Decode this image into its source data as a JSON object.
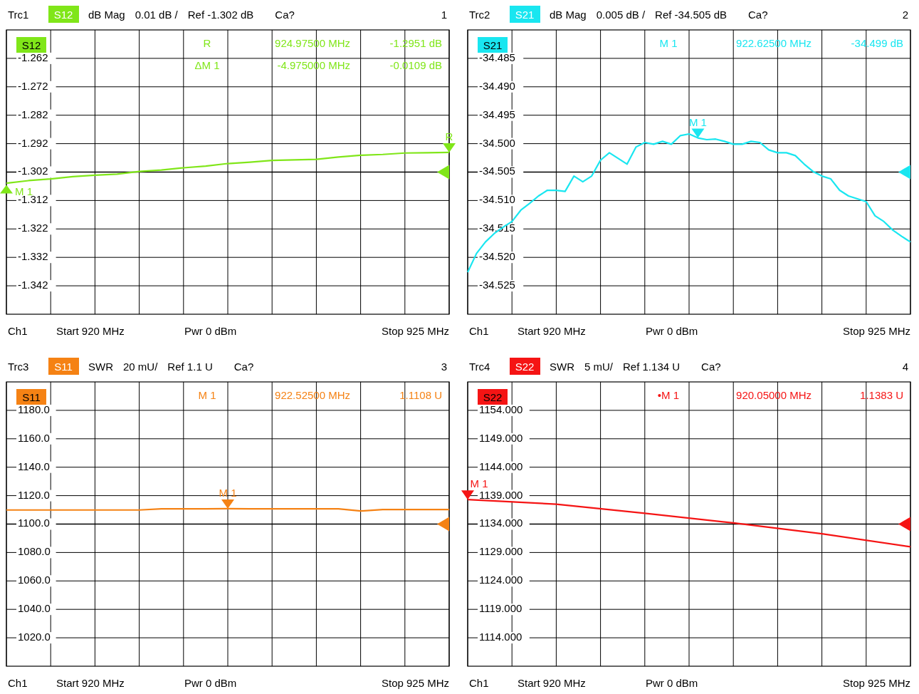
{
  "chart_data": [
    {
      "type": "line",
      "title": "Trc1",
      "categories": [
        null,
        null,
        null,
        null,
        null,
        null,
        null,
        null,
        null,
        null,
        null,
        null,
        null,
        null,
        null,
        null,
        null,
        null,
        null,
        null,
        null
      ],
      "ylim": [
        -1.352,
        -1.252
      ],
      "yticks": [
        {
          "value": -1.262,
          "label": "-1.262"
        },
        {
          "value": -1.272,
          "label": "-1.272"
        },
        {
          "value": -1.282,
          "label": "-1.282"
        },
        {
          "value": -1.292,
          "label": "-1.292"
        },
        {
          "value": -1.302,
          "label": "-1.302"
        },
        {
          "value": -1.312,
          "label": "-1.312"
        },
        {
          "value": -1.322,
          "label": "-1.322"
        },
        {
          "value": -1.332,
          "label": "-1.332"
        },
        {
          "value": -1.342,
          "label": "-1.342"
        }
      ],
      "grid": true,
      "tick_labels": "y",
      "legend": "top left",
      "series": [
        {
          "name": "S12",
          "color": "#80e619",
          "values": [
            -1.3059,
            -1.305,
            -1.3044,
            -1.3036,
            -1.3031,
            -1.3027,
            -1.3018,
            -1.3013,
            -1.3005,
            -1.2999,
            -1.299,
            -1.2985,
            -1.2979,
            -1.2977,
            -1.2975,
            -1.2967,
            -1.2961,
            -1.2958,
            -1.2953,
            -1.2952,
            -1.2951
          ]
        }
      ],
      "ref_lines": [
        {
          "axis": "y",
          "value": -1.302
        }
      ],
      "annotations": [
        "dB Mag",
        "0.01 dB /",
        "Ref -1.302 dB",
        "Ca?",
        "1",
        "Ch1",
        "Start 920 MHz",
        "Pwr 0 dBm",
        "Stop 925 MHz",
        "R",
        "924.97500 MHz",
        "-1.2951 dB",
        "ΔM 1",
        "-4.975000 MHz",
        "-0.0109 dB",
        {
          "text": "R",
          "y": -1.2951
        },
        {
          "text": "M 1",
          "y": -1.306
        }
      ]
    },
    {
      "type": "line",
      "title": "Trc2",
      "categories": [
        null,
        null,
        null,
        null,
        null,
        null,
        null,
        null,
        null,
        null,
        null,
        null,
        null,
        null,
        null,
        null,
        null,
        null,
        null,
        null,
        null,
        null,
        null,
        null,
        null,
        null,
        null,
        null,
        null,
        null,
        null,
        null,
        null,
        null,
        null,
        null,
        null,
        null,
        null,
        null,
        null,
        null,
        null,
        null,
        null,
        null,
        null,
        null,
        null,
        null,
        null
      ],
      "ylim": [
        -34.53,
        -34.48
      ],
      "yticks": [
        {
          "value": -34.485,
          "label": "-34.485"
        },
        {
          "value": -34.49,
          "label": "-34.490"
        },
        {
          "value": -34.495,
          "label": "-34.495"
        },
        {
          "value": -34.5,
          "label": "-34.500"
        },
        {
          "value": -34.505,
          "label": "-34.505"
        },
        {
          "value": -34.51,
          "label": "-34.510"
        },
        {
          "value": -34.515,
          "label": "-34.515"
        },
        {
          "value": -34.52,
          "label": "-34.520"
        },
        {
          "value": -34.525,
          "label": "-34.525"
        }
      ],
      "grid": true,
      "tick_labels": "y",
      "legend": "top left",
      "series": [
        {
          "name": "S21",
          "color": "#19e6f0",
          "values": [
            -34.5226,
            -34.5193,
            -34.5173,
            -34.5158,
            -34.5147,
            -34.5137,
            -34.5117,
            -34.5105,
            -34.5092,
            -34.5082,
            -34.5082,
            -34.5084,
            -34.5057,
            -34.5067,
            -34.5057,
            -34.5029,
            -34.5016,
            -34.5026,
            -34.5036,
            -34.5006,
            -34.4998,
            -34.5001,
            -34.4996,
            -34.5001,
            -34.4986,
            -34.4983,
            -34.499,
            -34.4993,
            -34.4992,
            -34.4996,
            -34.5001,
            -34.5001,
            -34.4996,
            -34.4998,
            -34.5011,
            -34.5016,
            -34.5016,
            -34.5021,
            -34.5036,
            -34.5049,
            -34.5057,
            -34.5062,
            -34.5082,
            -34.5092,
            -34.5097,
            -34.5102,
            -34.5127,
            -34.5137,
            -34.5152,
            -34.5163,
            -34.5173
          ]
        }
      ],
      "ref_lines": [
        {
          "axis": "y",
          "value": -34.505
        }
      ],
      "annotations": [
        "dB Mag",
        "0.005 dB /",
        "Ref -34.505 dB",
        "Ca?",
        "2",
        "Ch1",
        "Start 920 MHz",
        "Pwr 0 dBm",
        "Stop 925 MHz",
        "M 1",
        "922.62500 MHz",
        "-34.499 dB",
        {
          "text": "M 1",
          "y": -34.499
        }
      ]
    },
    {
      "type": "line",
      "title": "Trc3",
      "categories": [
        null,
        null,
        null,
        null,
        null,
        null,
        null,
        null,
        null,
        null,
        null,
        null,
        null,
        null,
        null,
        null,
        null,
        null,
        null,
        null,
        null
      ],
      "ylim": [
        1000,
        1200
      ],
      "yticks": [
        {
          "value": 1180,
          "label": "1180.0"
        },
        {
          "value": 1160,
          "label": "1160.0"
        },
        {
          "value": 1140,
          "label": "1140.0"
        },
        {
          "value": 1120,
          "label": "1120.0"
        },
        {
          "value": 1100,
          "label": "1100.0"
        },
        {
          "value": 1080,
          "label": "1080.0"
        },
        {
          "value": 1060,
          "label": "1060.0"
        },
        {
          "value": 1040,
          "label": "1040.0"
        },
        {
          "value": 1020,
          "label": "1020.0"
        }
      ],
      "grid": true,
      "tick_labels": "y",
      "legend": "top left",
      "series": [
        {
          "name": "S11",
          "color": "#f58214",
          "values": [
            1109.9,
            1109.9,
            1109.9,
            1109.9,
            1109.9,
            1109.9,
            1109.9,
            1110.7,
            1110.7,
            1110.7,
            1110.8,
            1110.7,
            1110.7,
            1110.7,
            1110.7,
            1110.7,
            1109.2,
            1110.2,
            1110.2,
            1110.2,
            1110.2
          ]
        }
      ],
      "ref_lines": [
        {
          "axis": "y",
          "value": 1100
        }
      ],
      "annotations": [
        "SWR",
        "20 mU/",
        "Ref 1.1 U",
        "Ca?",
        "3",
        "Ch1",
        "Start 920 MHz",
        "Pwr 0 dBm",
        "Stop 925 MHz",
        "M 1",
        "922.52500 MHz",
        "1.1108 U",
        {
          "text": "M 1",
          "y": 1110.8
        }
      ]
    },
    {
      "type": "line",
      "title": "Trc4",
      "categories": [
        null,
        null,
        null,
        null,
        null,
        null
      ],
      "ylim": [
        1109,
        1159
      ],
      "yticks": [
        {
          "value": 1154,
          "label": "1154.000"
        },
        {
          "value": 1149,
          "label": "1149.000"
        },
        {
          "value": 1144,
          "label": "1144.000"
        },
        {
          "value": 1139,
          "label": "1139.000"
        },
        {
          "value": 1134,
          "label": "1134.000"
        },
        {
          "value": 1129,
          "label": "1129.000"
        },
        {
          "value": 1124,
          "label": "1124.000"
        },
        {
          "value": 1119,
          "label": "1119.000"
        },
        {
          "value": 1114,
          "label": "1114.000"
        }
      ],
      "grid": true,
      "tick_labels": "y",
      "legend": "top left",
      "series": [
        {
          "name": "S22",
          "color": "#f51414",
          "values": [
            1138.3,
            1137.5,
            1135.9,
            1134.2,
            1132.3,
            1130
          ]
        }
      ],
      "ref_lines": [
        {
          "axis": "y",
          "value": 1134
        }
      ],
      "annotations": [
        "SWR",
        "5 mU/",
        "Ref 1.134 U",
        "Ca?",
        "4",
        "Ch1",
        "Start 920 MHz",
        "Pwr 0 dBm",
        "Stop 925 MHz",
        "•M 1",
        "920.05000 MHz",
        "1.1383 U",
        {
          "text": "M 1",
          "y": 1138.3
        }
      ]
    }
  ]
}
